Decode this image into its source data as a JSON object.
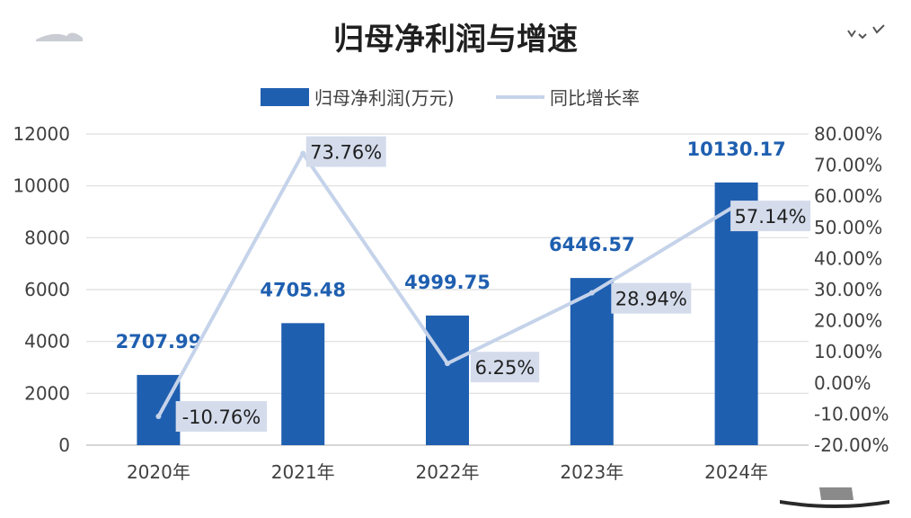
{
  "colors": {
    "bar": "#1f5fb0",
    "line": "#c5d3ea",
    "label_box": "#d4dcec",
    "grid": "#dedede",
    "bar_label": "#1f5fb0"
  },
  "chart_data": {
    "type": "bar",
    "title": "归母净利润与增速",
    "categories": [
      "2020年",
      "2021年",
      "2022年",
      "2023年",
      "2024年"
    ],
    "series": [
      {
        "name": "归母净利润(万元)",
        "type": "bar",
        "axis": "left",
        "values": [
          2707.99,
          4705.48,
          4999.75,
          6446.57,
          10130.17
        ],
        "labels": [
          "2707.99",
          "4705.48",
          "4999.75",
          "6446.57",
          "10130.17"
        ]
      },
      {
        "name": "同比增长率",
        "type": "line",
        "axis": "right",
        "values": [
          -10.76,
          73.76,
          6.25,
          28.94,
          57.14
        ],
        "labels": [
          "-10.76%",
          "73.76%",
          "6.25%",
          "28.94%",
          "57.14%"
        ]
      }
    ],
    "y_left": {
      "ylim": [
        0,
        12000
      ],
      "ticks": [
        "0",
        "2000",
        "4000",
        "6000",
        "8000",
        "10000",
        "12000"
      ]
    },
    "y_right": {
      "ylim": [
        -20,
        80
      ],
      "ticks": [
        "-20.00%",
        "-10.00%",
        "0.00%",
        "10.00%",
        "20.00%",
        "30.00%",
        "40.00%",
        "50.00%",
        "60.00%",
        "70.00%",
        "80.00%"
      ]
    },
    "grid": true,
    "legend": "top"
  }
}
